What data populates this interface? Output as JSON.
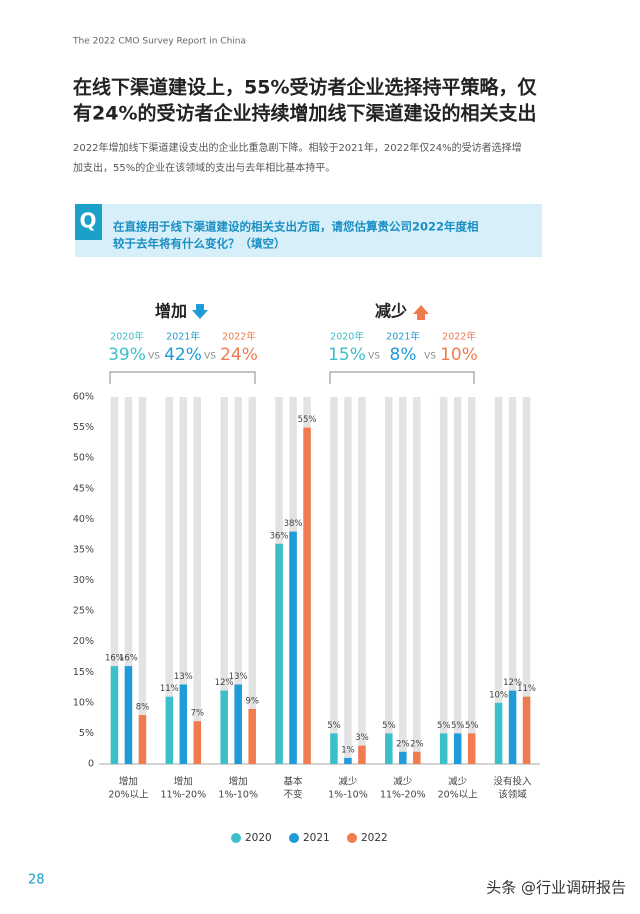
{
  "header": {
    "report": "The 2022 CMO Survey Report in China"
  },
  "title": [
    "在线下渠道建设上，55%受访者企业选择持平策略，仅",
    "有24%的受访者企业持续增加线下渠道建设的相关支出"
  ],
  "paragraph": [
    "2022年增加线下渠道建设支出的企业比重急剧下降。相较于2021年，2022年仅24%的受访者选择增",
    "加支出，55%的企业在该领域的支出与去年相比基本持平。"
  ],
  "question": {
    "mark": "Q",
    "lines": [
      "在直接用于线下渠道建设的相关支出方面，请您估算贵公司2022年度相",
      "较于去年将有什么变化？（填空）"
    ]
  },
  "summary": [
    {
      "label": "增加",
      "years": [
        "2020年",
        "2021年",
        "2022年"
      ],
      "values": [
        "39%",
        "42%",
        "24%"
      ],
      "vs": [
        "VS",
        "VS"
      ]
    },
    {
      "label": "减少",
      "years": [
        "2020年",
        "2021年",
        "2022年"
      ],
      "values": [
        "15%",
        "8%",
        "10%"
      ],
      "vs": [
        "VS",
        "VS"
      ]
    }
  ],
  "chart_data": {
    "type": "bar",
    "categories": [
      [
        "增加",
        "20%以上"
      ],
      [
        "增加",
        "11%-20%"
      ],
      [
        "增加",
        "1%-10%"
      ],
      [
        "基本",
        "不变"
      ],
      [
        "减少",
        "1%-10%"
      ],
      [
        "减少",
        "11%-20%"
      ],
      [
        "减少",
        "20%以上"
      ],
      [
        "没有投入",
        "该领域"
      ]
    ],
    "series": [
      {
        "name": "2020",
        "color": "#3cbfc9",
        "values": [
          16,
          11,
          12,
          36,
          5,
          5,
          5,
          10
        ],
        "value_labels": [
          "16%",
          "11%",
          "12%",
          "36%",
          "5%",
          "5%",
          "5%",
          "10%"
        ]
      },
      {
        "name": "2021",
        "color": "#1f9bd7",
        "values": [
          16,
          13,
          13,
          38,
          1,
          2,
          5,
          12
        ],
        "value_labels": [
          "16%",
          "13%",
          "13%",
          "38%",
          "1%",
          "2%",
          "5%",
          "12%"
        ]
      },
      {
        "name": "2022",
        "color": "#f07b4f",
        "values": [
          8,
          7,
          9,
          55,
          3,
          2,
          5,
          11
        ],
        "value_labels": [
          "8%",
          "7%",
          "9%",
          "55%",
          "3%",
          "2%",
          "5%",
          "11%"
        ]
      }
    ],
    "ylim": [
      0,
      60
    ],
    "yticks": [
      0,
      {
        "value": 5,
        "label": "5%"
      },
      {
        "value": 10,
        "label": "10%"
      },
      {
        "value": 15,
        "label": "15%"
      },
      {
        "value": 20,
        "label": "20%"
      },
      {
        "value": 25,
        "label": "25%"
      },
      {
        "value": 30,
        "label": "30%"
      },
      {
        "value": 35,
        "label": "35%"
      },
      {
        "value": 40,
        "label": "40%"
      },
      {
        "value": 45,
        "label": "45%"
      },
      {
        "value": 50,
        "label": "50%"
      },
      {
        "value": 55,
        "label": "55%"
      },
      {
        "value": 60,
        "label": "60%"
      }
    ],
    "grid": false
  },
  "footer": {
    "page": "28",
    "watermark": "头条 @行业调研报告"
  }
}
